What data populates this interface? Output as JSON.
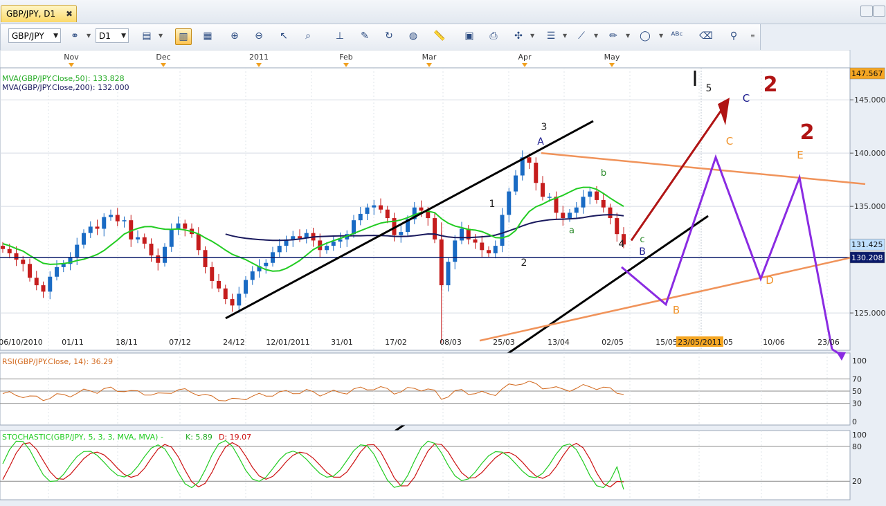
{
  "tab": {
    "title": "GBP/JPY, D1",
    "close": "✖"
  },
  "toolbar": {
    "symbol": "GBP/JPY",
    "timeframe": "D1"
  },
  "legend": {
    "ma50": "MVA(GBP/JPY.Close,50): 133.828",
    "ma200": "MVA(GBP/JPY.Close,200): 132.000",
    "rsi": "RSI(GBP/JPY.Close, 14): 36.29",
    "stoch_name": "STOCHASTIC(GBP/JPY, 5, 3, 3, MVA, MVA) -",
    "stoch_k": "K: 5.89",
    "stoch_d": "D: 19.07"
  },
  "months": [
    "Nov",
    "Dec",
    "2011",
    "Feb",
    "Mar",
    "Apr",
    "May"
  ],
  "dates": [
    "06/10/2010",
    "01/11",
    "18/11",
    "07/12",
    "24/12",
    "12/01/2011",
    "31/01",
    "17/02",
    "08/03",
    "25/03",
    "13/04",
    "02/05",
    "15/05",
    "23/05/2011",
    "05",
    "10/06",
    "23/06"
  ],
  "price_ticks": [
    "145.000",
    "140.000",
    "135.000",
    "125.000"
  ],
  "price_badges": {
    "top": "147.567",
    "current": "131.425",
    "line": "130.208"
  },
  "rsi_ticks": [
    "100",
    "70",
    "50",
    "30",
    "0"
  ],
  "stoch_ticks": [
    "100",
    "80",
    "20"
  ],
  "wave_labels": {
    "l3": "3",
    "lA": "A",
    "l1": "1",
    "l2": "2",
    "lb": "b",
    "la": "a",
    "lc": "c",
    "l4": "4",
    "lB": "B",
    "l5": "5",
    "lC": "C",
    "l2a": "2",
    "l2b": "2",
    "oC": "C",
    "oE": "E",
    "oB": "B",
    "oD": "D"
  },
  "colors": {
    "up": "#1a6bc4",
    "down": "#c51d1d",
    "ma50": "#22cc22",
    "ma200": "#1a1a5e",
    "wave_purple": "#8a2be2",
    "trend_orange": "#f0935a",
    "arrow": "#b01414",
    "rsi": "#d2691e",
    "stoch_k": "#22cc22",
    "stoch_d": "#cc1111"
  },
  "chart_data": {
    "type": "candlestick",
    "symbol": "GBP/JPY",
    "timeframe": "D1",
    "ylim": [
      121.5,
      148
    ],
    "price_levels": {
      "current": 131.425,
      "horizontal": 130.208,
      "top": 147.567
    },
    "ma50_last": 133.828,
    "ma200_last": 132.0,
    "ohlc_close": [
      131.0,
      130.6,
      130.0,
      129.6,
      128.3,
      127.6,
      127.0,
      128.4,
      129.3,
      129.6,
      130.2,
      131.4,
      132.5,
      133.1,
      132.9,
      134.0,
      134.2,
      133.6,
      133.7,
      131.9,
      132.1,
      131.5,
      130.4,
      129.7,
      131.2,
      132.9,
      133.4,
      132.9,
      132.4,
      130.9,
      129.3,
      128.0,
      127.3,
      126.3,
      125.7,
      126.8,
      128.1,
      128.9,
      129.4,
      129.7,
      130.7,
      131.3,
      131.9,
      132.2,
      132.0,
      132.5,
      131.8,
      130.9,
      131.3,
      131.7,
      131.9,
      132.4,
      133.7,
      134.3,
      134.9,
      135.1,
      134.7,
      133.9,
      132.3,
      132.6,
      133.8,
      134.9,
      134.6,
      133.9,
      131.9,
      127.6,
      129.8,
      131.8,
      132.9,
      131.9,
      131.6,
      130.9,
      130.6,
      131.3,
      134.2,
      136.4,
      137.9,
      139.6,
      139.1,
      137.2,
      135.9,
      135.9,
      134.4,
      133.9,
      134.4,
      134.9,
      135.9,
      136.4,
      135.6,
      134.9,
      133.9,
      132.4,
      131.425
    ],
    "rsi": {
      "value": 36.29,
      "levels": [
        70,
        50,
        30
      ],
      "ylim": [
        0,
        100
      ]
    },
    "stochastic": {
      "k": 5.89,
      "d": 19.07,
      "levels": [
        80,
        20
      ],
      "ylim": [
        0,
        100
      ]
    },
    "orange_projection": [
      [
        "05/2011",
        126.2
      ],
      [
        "late 05",
        139.6
      ],
      [
        "early 06",
        128.2
      ],
      [
        "mid 06",
        137.7
      ],
      [
        "23/06",
        121.5
      ]
    ],
    "purple_projection": [
      129.0,
      125.7,
      139.6,
      128.2,
      137.7,
      121.5
    ]
  }
}
